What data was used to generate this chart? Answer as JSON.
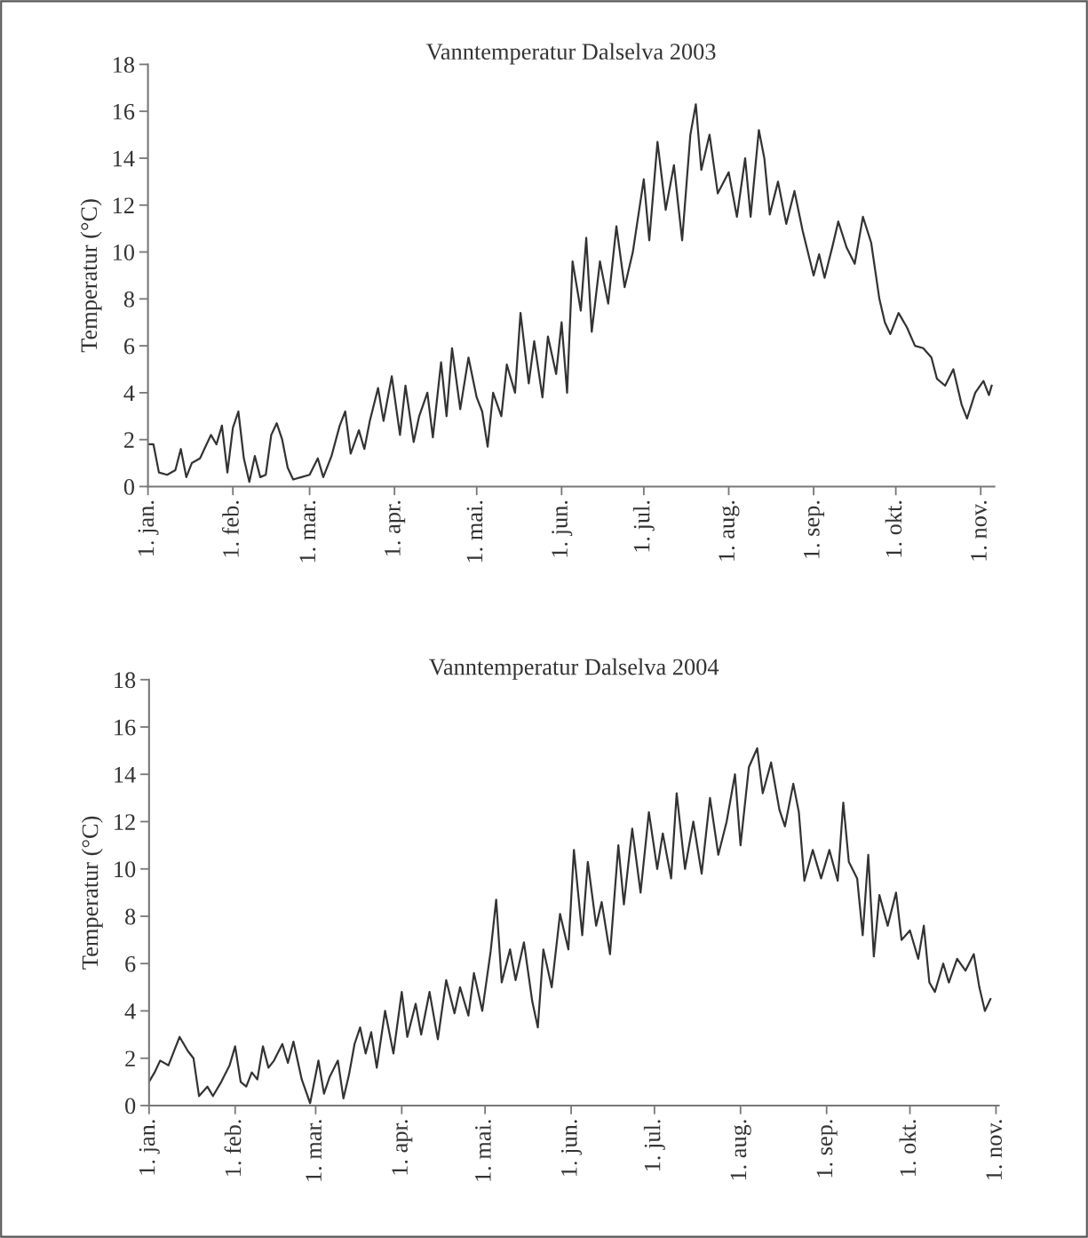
{
  "chart_data": [
    {
      "type": "line",
      "title": "Vanntemperatur Dalselva 2003",
      "ylabel": "Temperatur (°C)",
      "ylim": [
        0,
        18
      ],
      "yticks": [
        0,
        2,
        4,
        6,
        8,
        10,
        12,
        14,
        16,
        18
      ],
      "xlim": [
        "2003-01-01",
        "2003-11-06"
      ],
      "xticks": [
        {
          "value": "2003-01-01",
          "label": "1. jan."
        },
        {
          "value": "2003-02-01",
          "label": "1. feb."
        },
        {
          "value": "2003-03-01",
          "label": "1. mar."
        },
        {
          "value": "2003-04-01",
          "label": "1. apr."
        },
        {
          "value": "2003-05-01",
          "label": "1. mai."
        },
        {
          "value": "2003-06-01",
          "label": "1. jun."
        },
        {
          "value": "2003-07-01",
          "label": "1. jul."
        },
        {
          "value": "2003-08-01",
          "label": "1. aug."
        },
        {
          "value": "2003-09-01",
          "label": "1. sep."
        },
        {
          "value": "2003-10-01",
          "label": "1. okt."
        },
        {
          "value": "2003-11-01",
          "label": "1. nov."
        }
      ],
      "grid": false,
      "legend": false,
      "line_style": "solid",
      "marker": "none",
      "series": [
        {
          "color": "#333333",
          "x": [
            "2003-01-01",
            "2003-01-03",
            "2003-01-05",
            "2003-01-08",
            "2003-01-11",
            "2003-01-13",
            "2003-01-15",
            "2003-01-17",
            "2003-01-20",
            "2003-01-22",
            "2003-01-24",
            "2003-01-26",
            "2003-01-28",
            "2003-01-30",
            "2003-02-01",
            "2003-02-03",
            "2003-02-05",
            "2003-02-07",
            "2003-02-09",
            "2003-02-11",
            "2003-02-13",
            "2003-02-15",
            "2003-02-17",
            "2003-02-19",
            "2003-02-21",
            "2003-02-23",
            "2003-02-26",
            "2003-03-01",
            "2003-03-04",
            "2003-03-06",
            "2003-03-09",
            "2003-03-12",
            "2003-03-14",
            "2003-03-16",
            "2003-03-19",
            "2003-03-21",
            "2003-03-23",
            "2003-03-26",
            "2003-03-28",
            "2003-03-31",
            "2003-04-03",
            "2003-04-05",
            "2003-04-08",
            "2003-04-10",
            "2003-04-13",
            "2003-04-15",
            "2003-04-18",
            "2003-04-20",
            "2003-04-22",
            "2003-04-25",
            "2003-04-28",
            "2003-05-01",
            "2003-05-03",
            "2003-05-05",
            "2003-05-07",
            "2003-05-10",
            "2003-05-12",
            "2003-05-15",
            "2003-05-17",
            "2003-05-20",
            "2003-05-22",
            "2003-05-25",
            "2003-05-27",
            "2003-05-30",
            "2003-06-01",
            "2003-06-03",
            "2003-06-05",
            "2003-06-08",
            "2003-06-10",
            "2003-06-12",
            "2003-06-15",
            "2003-06-18",
            "2003-06-21",
            "2003-06-24",
            "2003-06-27",
            "2003-07-01",
            "2003-07-03",
            "2003-07-06",
            "2003-07-09",
            "2003-07-12",
            "2003-07-15",
            "2003-07-18",
            "2003-07-20",
            "2003-07-22",
            "2003-07-25",
            "2003-07-28",
            "2003-08-01",
            "2003-08-04",
            "2003-08-07",
            "2003-08-09",
            "2003-08-12",
            "2003-08-14",
            "2003-08-16",
            "2003-08-19",
            "2003-08-22",
            "2003-08-25",
            "2003-08-28",
            "2003-09-01",
            "2003-09-03",
            "2003-09-05",
            "2003-09-08",
            "2003-09-10",
            "2003-09-13",
            "2003-09-16",
            "2003-09-19",
            "2003-09-22",
            "2003-09-25",
            "2003-09-27",
            "2003-09-29",
            "2003-10-02",
            "2003-10-05",
            "2003-10-08",
            "2003-10-11",
            "2003-10-14",
            "2003-10-16",
            "2003-10-19",
            "2003-10-22",
            "2003-10-25",
            "2003-10-27",
            "2003-10-30",
            "2003-11-02",
            "2003-11-04",
            "2003-11-05"
          ],
          "values": [
            1.8,
            1.8,
            0.6,
            0.5,
            0.7,
            1.6,
            0.4,
            1.0,
            1.2,
            1.7,
            2.2,
            1.8,
            2.6,
            0.6,
            2.5,
            3.2,
            1.2,
            0.2,
            1.3,
            0.4,
            0.5,
            2.2,
            2.7,
            2.0,
            0.8,
            0.3,
            0.4,
            0.5,
            1.2,
            0.4,
            1.3,
            2.6,
            3.2,
            1.4,
            2.4,
            1.6,
            2.8,
            4.2,
            2.8,
            4.7,
            2.2,
            4.3,
            1.9,
            3.0,
            4.0,
            2.1,
            5.3,
            3.0,
            5.9,
            3.3,
            5.5,
            3.8,
            3.2,
            1.7,
            4.0,
            3.0,
            5.2,
            4.0,
            7.4,
            4.4,
            6.2,
            3.8,
            6.4,
            4.8,
            7.0,
            4.0,
            9.6,
            7.5,
            10.6,
            6.6,
            9.6,
            7.8,
            11.1,
            8.5,
            10.0,
            13.1,
            10.5,
            14.7,
            11.8,
            13.7,
            10.5,
            15.0,
            16.3,
            13.5,
            15.0,
            12.5,
            13.4,
            11.5,
            14.0,
            11.5,
            15.2,
            14.0,
            11.6,
            13.0,
            11.2,
            12.6,
            10.9,
            9.0,
            9.9,
            8.9,
            10.3,
            11.3,
            10.2,
            9.5,
            11.5,
            10.4,
            8.0,
            7.0,
            6.5,
            7.4,
            6.8,
            6.0,
            5.9,
            5.5,
            4.6,
            4.3,
            5.0,
            3.5,
            2.9,
            4.0,
            4.5,
            3.9,
            4.3
          ]
        }
      ]
    },
    {
      "type": "line",
      "title": "Vanntemperatur Dalselva 2004",
      "ylabel": "Temperatur (°C)",
      "ylim": [
        0,
        18
      ],
      "yticks": [
        0,
        2,
        4,
        6,
        8,
        10,
        12,
        14,
        16,
        18
      ],
      "xlim": [
        "2004-01-01",
        "2004-11-02"
      ],
      "xticks": [
        {
          "value": "2004-01-01",
          "label": "1. jan."
        },
        {
          "value": "2004-02-01",
          "label": "1. feb."
        },
        {
          "value": "2004-03-01",
          "label": "1. mar."
        },
        {
          "value": "2004-04-01",
          "label": "1. apr."
        },
        {
          "value": "2004-05-01",
          "label": "1. mai."
        },
        {
          "value": "2004-06-01",
          "label": "1. jun."
        },
        {
          "value": "2004-07-01",
          "label": "1. jul."
        },
        {
          "value": "2004-08-01",
          "label": "1. aug."
        },
        {
          "value": "2004-09-01",
          "label": "1. sep."
        },
        {
          "value": "2004-10-01",
          "label": "1. okt."
        },
        {
          "value": "2004-11-01",
          "label": "1. nov."
        }
      ],
      "grid": false,
      "legend": false,
      "line_style": "solid",
      "marker": "none",
      "series": [
        {
          "color": "#333333",
          "x": [
            "2004-01-01",
            "2004-01-03",
            "2004-01-05",
            "2004-01-08",
            "2004-01-10",
            "2004-01-12",
            "2004-01-15",
            "2004-01-17",
            "2004-01-19",
            "2004-01-22",
            "2004-01-24",
            "2004-01-27",
            "2004-01-30",
            "2004-02-01",
            "2004-02-03",
            "2004-02-05",
            "2004-02-07",
            "2004-02-09",
            "2004-02-11",
            "2004-02-13",
            "2004-02-15",
            "2004-02-18",
            "2004-02-20",
            "2004-02-22",
            "2004-02-25",
            "2004-02-28",
            "2004-03-02",
            "2004-03-04",
            "2004-03-06",
            "2004-03-09",
            "2004-03-11",
            "2004-03-13",
            "2004-03-15",
            "2004-03-17",
            "2004-03-19",
            "2004-03-21",
            "2004-03-23",
            "2004-03-26",
            "2004-03-29",
            "2004-04-01",
            "2004-04-03",
            "2004-04-06",
            "2004-04-08",
            "2004-04-11",
            "2004-04-14",
            "2004-04-17",
            "2004-04-20",
            "2004-04-22",
            "2004-04-25",
            "2004-04-27",
            "2004-04-30",
            "2004-05-03",
            "2004-05-05",
            "2004-05-07",
            "2004-05-10",
            "2004-05-12",
            "2004-05-15",
            "2004-05-18",
            "2004-05-20",
            "2004-05-22",
            "2004-05-25",
            "2004-05-28",
            "2004-05-31",
            "2004-06-02",
            "2004-06-05",
            "2004-06-07",
            "2004-06-10",
            "2004-06-12",
            "2004-06-15",
            "2004-06-18",
            "2004-06-20",
            "2004-06-23",
            "2004-06-26",
            "2004-06-29",
            "2004-07-02",
            "2004-07-04",
            "2004-07-07",
            "2004-07-09",
            "2004-07-12",
            "2004-07-15",
            "2004-07-18",
            "2004-07-21",
            "2004-07-24",
            "2004-07-27",
            "2004-07-30",
            "2004-08-01",
            "2004-08-04",
            "2004-08-07",
            "2004-08-09",
            "2004-08-12",
            "2004-08-15",
            "2004-08-17",
            "2004-08-20",
            "2004-08-22",
            "2004-08-24",
            "2004-08-27",
            "2004-08-30",
            "2004-09-02",
            "2004-09-05",
            "2004-09-07",
            "2004-09-09",
            "2004-09-12",
            "2004-09-14",
            "2004-09-16",
            "2004-09-18",
            "2004-09-20",
            "2004-09-23",
            "2004-09-26",
            "2004-09-28",
            "2004-10-01",
            "2004-10-04",
            "2004-10-06",
            "2004-10-08",
            "2004-10-10",
            "2004-10-13",
            "2004-10-15",
            "2004-10-18",
            "2004-10-21",
            "2004-10-24",
            "2004-10-26",
            "2004-10-28",
            "2004-10-30"
          ],
          "values": [
            1.0,
            1.4,
            1.9,
            1.7,
            2.3,
            2.9,
            2.3,
            2.0,
            0.4,
            0.8,
            0.4,
            1.0,
            1.7,
            2.5,
            1.0,
            0.8,
            1.4,
            1.1,
            2.5,
            1.6,
            1.9,
            2.6,
            1.8,
            2.7,
            1.1,
            0.1,
            1.9,
            0.5,
            1.2,
            1.9,
            0.3,
            1.3,
            2.6,
            3.3,
            2.2,
            3.1,
            1.6,
            4.0,
            2.2,
            4.8,
            2.9,
            4.3,
            3.0,
            4.8,
            2.8,
            5.3,
            3.9,
            5.0,
            3.8,
            5.6,
            4.0,
            6.5,
            8.7,
            5.2,
            6.6,
            5.3,
            6.9,
            4.4,
            3.3,
            6.6,
            5.0,
            8.1,
            6.6,
            10.8,
            7.2,
            10.3,
            7.6,
            8.6,
            6.4,
            11.0,
            8.5,
            11.7,
            9.0,
            12.4,
            10.0,
            11.5,
            9.6,
            13.2,
            10.0,
            12.0,
            9.8,
            13.0,
            10.6,
            12.0,
            14.0,
            11.0,
            14.3,
            15.1,
            13.2,
            14.5,
            12.5,
            11.8,
            13.6,
            12.4,
            9.5,
            10.8,
            9.6,
            10.8,
            9.5,
            12.8,
            10.3,
            9.6,
            7.2,
            10.6,
            6.3,
            8.9,
            7.6,
            9.0,
            7.0,
            7.4,
            6.2,
            7.6,
            5.2,
            4.8,
            6.0,
            5.2,
            6.2,
            5.7,
            6.4,
            5.0,
            4.0,
            4.5
          ]
        }
      ]
    }
  ]
}
